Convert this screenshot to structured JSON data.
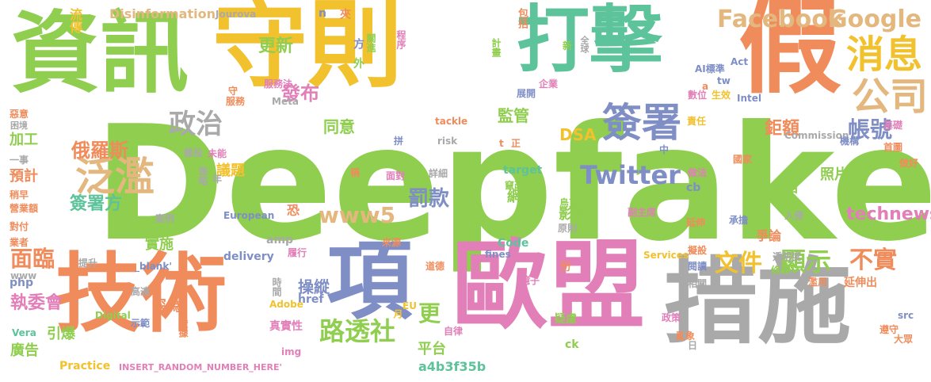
{
  "palette": {
    "green": "#8fce4e",
    "yellow": "#f2c12e",
    "teal": "#5cc39a",
    "orange": "#f08c5c",
    "pink": "#e27fb8",
    "slate": "#7f8fc6",
    "gray": "#a9a9a9",
    "tan": "#e3b77e"
  },
  "words": [
    "Deepfake",
    "守則",
    "打擊",
    "假",
    "資訊",
    "歐盟",
    "技術",
    "項",
    "措施",
    "消息",
    "公司",
    "簽署",
    "政治",
    "泛濫",
    "Twitter",
    "Facebook",
    "Google",
    "更新",
    "發布",
    "同意",
    "監管",
    "帳號",
    "鉅額",
    "文件",
    "顯示",
    "不實",
    "罰款",
    "www5",
    "technews",
    "面臨",
    "執委會",
    "路透社",
    "俄羅斯",
    "簽署方",
    "實施",
    "操縱",
    "網路",
    "影片",
    "照片",
    "更",
    "平台",
    "a4b3f35b",
    "廣告",
    "深偽",
    "真實性",
    "Practice",
    "INSERT_RANDOM_NUMBER_HERE'",
    "Disinformation",
    "Jourova",
    "流傳",
    "n",
    "夾",
    "包括",
    "方",
    "關進",
    "程序",
    "計畫",
    "全球",
    "新",
    "企業",
    "服務法",
    "Meta",
    "AI標準",
    "Act",
    "tw",
    "數位",
    "生效",
    "Intel",
    "展開",
    "責任",
    "基礎",
    "國家",
    "Commission",
    "機構",
    "首圖",
    "做好",
    "做法",
    "週四",
    "DSA",
    "議題",
    "加工",
    "困境",
    "惡意",
    "一事",
    "預計",
    "稍早",
    "營業額",
    "業者",
    "對付",
    "策略",
    "年",
    "雜役",
    "未能",
    "稱",
    "面對",
    "詳細",
    "target",
    "竄改",
    "cb",
    "延伸",
    "承擔",
    "入侵",
    "爭論",
    "原則",
    "烏克蘭",
    "副主席",
    "閱讀",
    "修改",
    "濫用",
    "延伸出",
    "透明度",
    "擬設",
    "相關",
    "疑慮",
    "份",
    "臆子",
    "Services",
    "Code",
    "fines",
    "來源",
    "道德",
    "delivery",
    "amp",
    "恐",
    "European",
    "案例",
    "履行",
    "提升",
    "_blank'",
    "www",
    "href",
    "Adobe",
    "EU",
    "月",
    "自律",
    "ck",
    "日",
    "遵守",
    "大眾",
    "src",
    "政策",
    "亂象",
    "php",
    "Digital",
    "Vera",
    "示範",
    "證據",
    "高達",
    "時間",
    "引爆",
    "拼",
    "risk",
    "tackle",
    "t",
    "正",
    "中",
    "a",
    "外",
    "服務",
    "守",
    "img"
  ]
}
